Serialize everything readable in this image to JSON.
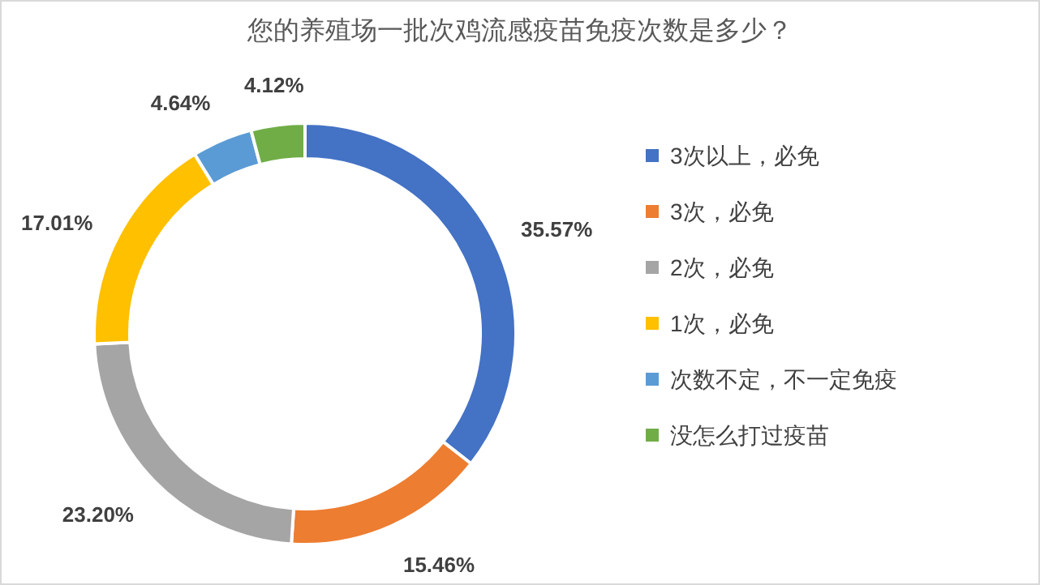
{
  "chart_data": {
    "type": "donut",
    "title": "您的养殖场一批次鸡流感疫苗免疫次数是多少？",
    "categories": [
      "3次以上，必免",
      "3次，必免",
      "2次，必免",
      "1次，必免",
      "次数不定，不一定免疫",
      "没怎么打过疫苗"
    ],
    "values": [
      35.57,
      15.46,
      23.2,
      17.01,
      4.64,
      4.12
    ],
    "value_labels": [
      "35.57%",
      "15.46%",
      "23.20%",
      "17.01%",
      "4.64%",
      "4.12%"
    ],
    "colors": [
      "#4472c4",
      "#ed7d31",
      "#a5a5a5",
      "#ffc000",
      "#5b9bd5",
      "#70ad47"
    ],
    "legend": "right"
  }
}
